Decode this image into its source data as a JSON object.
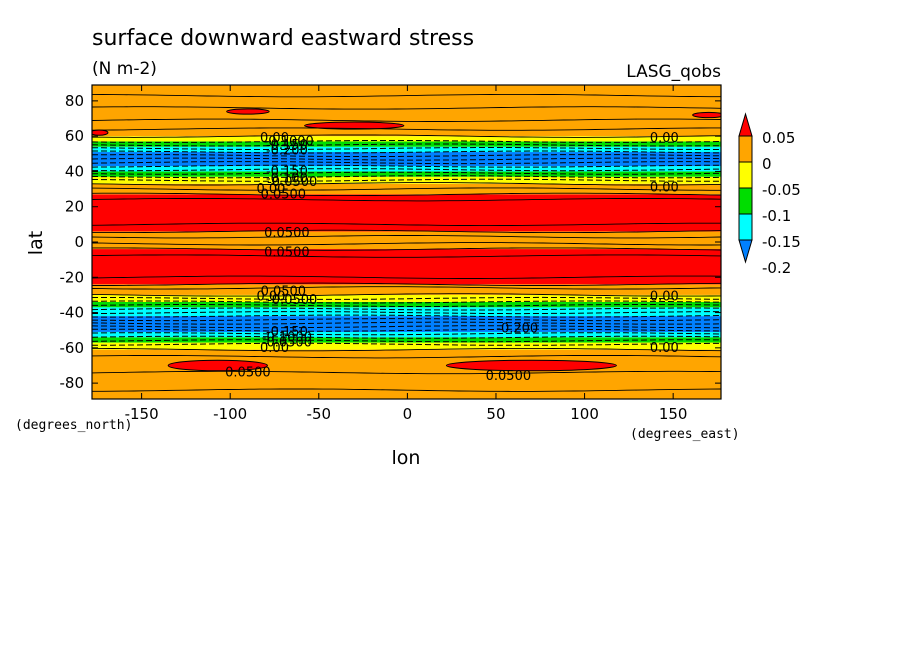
{
  "chart_data": {
    "type": "heatmap",
    "title": "surface downward eastward stress",
    "units": "(N m-2)",
    "source_label": "LASG_qobs",
    "xlabel": "lon",
    "ylabel": "lat",
    "x_units_note": "(degrees_east)",
    "y_units_note": "(degrees_north)",
    "xlim": [
      -178,
      177
    ],
    "ylim": [
      -89,
      89
    ],
    "x_ticks": [
      -150,
      -100,
      -50,
      0,
      50,
      100,
      150
    ],
    "y_ticks": [
      -80,
      -60,
      -40,
      -20,
      0,
      20,
      40,
      60,
      80
    ],
    "x_tick_labels": [
      "-150",
      "-100",
      "-50",
      "0",
      "50",
      "100",
      "150"
    ],
    "y_tick_labels": [
      "-80",
      "-60",
      "-40",
      "-20",
      "0",
      "20",
      "40",
      "60",
      "80"
    ],
    "colorbar": {
      "labels": [
        "0.05",
        "0",
        "-0.05",
        "-0.1",
        "-0.15",
        "-0.2"
      ],
      "levels": [
        0.05,
        0,
        -0.05,
        -0.1,
        -0.15,
        -0.2
      ],
      "bins": [
        {
          "from": 0.05,
          "to": null,
          "color": "#ff0000"
        },
        {
          "from": 0,
          "to": 0.05,
          "color": "#ffa500"
        },
        {
          "from": -0.05,
          "to": 0,
          "color": "#ffff00"
        },
        {
          "from": -0.1,
          "to": -0.05,
          "color": "#00dd00"
        },
        {
          "from": -0.15,
          "to": -0.1,
          "color": "#00ffff"
        },
        {
          "from": null,
          "to": -0.2,
          "color": "#0080ff"
        }
      ]
    },
    "bands": [
      {
        "lat_from": -89,
        "lat_to": -61,
        "color": "#ffa500"
      },
      {
        "lat_from": -61,
        "lat_to": -57,
        "color": "#ffff00"
      },
      {
        "lat_from": -57,
        "lat_to": -54,
        "color": "#00dd00"
      },
      {
        "lat_from": -54,
        "lat_to": -51,
        "color": "#00ffff"
      },
      {
        "lat_from": -51,
        "lat_to": -42,
        "color": "#0080ff"
      },
      {
        "lat_from": -42,
        "lat_to": -37,
        "color": "#00ffff"
      },
      {
        "lat_from": -37,
        "lat_to": -34,
        "color": "#00dd00"
      },
      {
        "lat_from": -34,
        "lat_to": -30,
        "color": "#ffff00"
      },
      {
        "lat_from": -30,
        "lat_to": -24,
        "color": "#ffa500"
      },
      {
        "lat_from": -24,
        "lat_to": -4,
        "color": "#ff0000"
      },
      {
        "lat_from": -4,
        "lat_to": 6,
        "color": "#ffa500"
      },
      {
        "lat_from": 6,
        "lat_to": 27,
        "color": "#ff0000"
      },
      {
        "lat_from": 27,
        "lat_to": 33,
        "color": "#ffa500"
      },
      {
        "lat_from": 33,
        "lat_to": 37,
        "color": "#ffff00"
      },
      {
        "lat_from": 37,
        "lat_to": 40,
        "color": "#00dd00"
      },
      {
        "lat_from": 40,
        "lat_to": 43,
        "color": "#00ffff"
      },
      {
        "lat_from": 43,
        "lat_to": 51,
        "color": "#0080ff"
      },
      {
        "lat_from": 51,
        "lat_to": 54,
        "color": "#00ffff"
      },
      {
        "lat_from": 54,
        "lat_to": 57,
        "color": "#00dd00"
      },
      {
        "lat_from": 57,
        "lat_to": 60,
        "color": "#ffff00"
      },
      {
        "lat_from": 60,
        "lat_to": 89,
        "color": "#ffa500"
      }
    ],
    "patches": [
      {
        "lon_center": -107,
        "lat_center": -70,
        "lon_half": 28,
        "lat_half": 3,
        "color": "#ff0000"
      },
      {
        "lon_center": 70,
        "lat_center": -70,
        "lon_half": 48,
        "lat_half": 3,
        "color": "#ff0000"
      },
      {
        "lon_center": -30,
        "lat_center": 66,
        "lon_half": 28,
        "lat_half": 2,
        "color": "#ff0000"
      },
      {
        "lon_center": -90,
        "lat_center": 74,
        "lon_half": 12,
        "lat_half": 1.5,
        "color": "#ff0000"
      },
      {
        "lon_center": 170,
        "lat_center": 72,
        "lon_half": 9,
        "lat_half": 1.5,
        "color": "#ff0000"
      },
      {
        "lon_center": -174,
        "lat_center": 62,
        "lon_half": 5,
        "lat_half": 1.5,
        "color": "#ff0000"
      }
    ],
    "solid_contours_lat": [
      -84,
      -74,
      -65,
      -61,
      -30,
      -26,
      -24,
      -20,
      -8,
      -4,
      -1,
      3,
      6,
      10,
      24,
      27,
      30,
      33,
      60,
      64,
      69,
      76,
      83
    ],
    "dashed_contours_lat": [
      -58,
      -56,
      -54,
      -52,
      -50,
      -48,
      -46,
      -44,
      -42,
      -40,
      -38,
      -36,
      -34,
      -32,
      35,
      37,
      39,
      41,
      43,
      45,
      47,
      49,
      51,
      53,
      55,
      57
    ],
    "contour_labels": [
      {
        "text": "0.00",
        "lon": -75,
        "lat": 59
      },
      {
        "text": "-0.1000",
        "lon": -67,
        "lat": 57
      },
      {
        "text": "-0.150",
        "lon": -68,
        "lat": 55
      },
      {
        "text": "-0.200",
        "lon": -68,
        "lat": 52
      },
      {
        "text": "-0.150",
        "lon": -68,
        "lat": 40
      },
      {
        "text": "-0.100",
        "lon": -68,
        "lat": 36
      },
      {
        "text": "-0.0500",
        "lon": -65,
        "lat": 34
      },
      {
        "text": "0.00",
        "lon": 145,
        "lat": 59
      },
      {
        "text": "0.00",
        "lon": 145,
        "lat": 31
      },
      {
        "text": "0.00",
        "lon": -77,
        "lat": 30
      },
      {
        "text": "0.0500",
        "lon": -70,
        "lat": 27
      },
      {
        "text": "0.0500",
        "lon": -68,
        "lat": 5
      },
      {
        "text": "0.0500",
        "lon": -68,
        "lat": -6
      },
      {
        "text": "0.0500",
        "lon": -70,
        "lat": -28
      },
      {
        "text": "0.00",
        "lon": -77,
        "lat": -31
      },
      {
        "text": "-0.0500",
        "lon": -65,
        "lat": -33
      },
      {
        "text": "-0.150",
        "lon": -68,
        "lat": -51
      },
      {
        "text": "-0.1000",
        "lon": -68,
        "lat": -54
      },
      {
        "text": "-0.0500",
        "lon": -68,
        "lat": -57
      },
      {
        "text": "0.00",
        "lon": -75,
        "lat": -60
      },
      {
        "text": "-0.200",
        "lon": 62,
        "lat": -49
      },
      {
        "text": "0.00",
        "lon": 145,
        "lat": -31
      },
      {
        "text": "0.00",
        "lon": 145,
        "lat": -60
      },
      {
        "text": "0.0500",
        "lon": -90,
        "lat": -74
      },
      {
        "text": "0.0500",
        "lon": 57,
        "lat": -76
      }
    ]
  }
}
